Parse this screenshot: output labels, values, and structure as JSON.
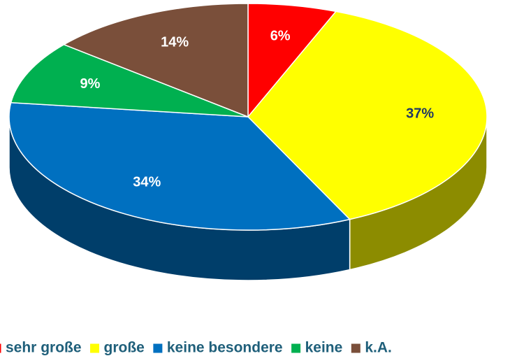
{
  "chart_data": {
    "type": "pie3d",
    "categories": [
      "sehr große",
      "große",
      "keine besondere",
      "keine",
      "k.A."
    ],
    "values": [
      6,
      37,
      34,
      9,
      14
    ],
    "value_labels": [
      "6%",
      "37%",
      "34%",
      "9%",
      "14%"
    ],
    "colors": [
      "#ff0000",
      "#ffff00",
      "#0070c0",
      "#00b050",
      "#7a4f3a"
    ],
    "label_colors": [
      "#ffffff",
      "#1f3864",
      "#ffffff",
      "#ffffff",
      "#ffffff"
    ],
    "legend": "bottom"
  }
}
